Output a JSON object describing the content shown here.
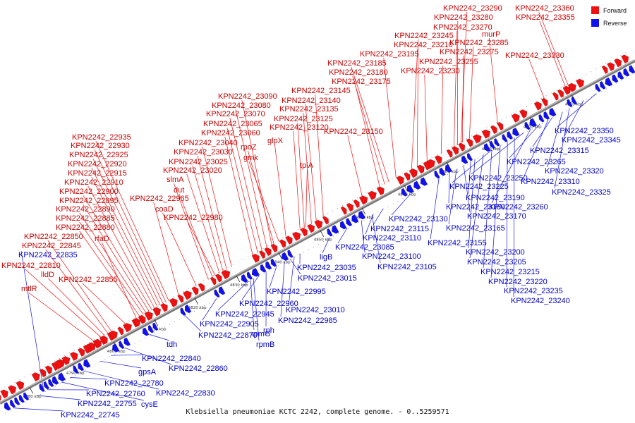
{
  "caption": "Klebsiella pneumoniae KCTC 2242, complete genome. - 0..5259571",
  "legend": [
    {
      "label": "Forward",
      "color": "#ee1111"
    },
    {
      "label": "Reverse",
      "color": "#1111ee"
    }
  ],
  "colors": {
    "forward": "#ee1111",
    "reverse": "#1111ee",
    "backbone": "#777777"
  },
  "ticks": [
    "4780 kbp",
    "4790 kbp",
    "4800 kbp",
    "4810 kbp",
    "4820 kbp",
    "4830 kbp",
    "4840 kbp",
    "4850 kbp",
    "4860 kbp",
    "4870 kbp",
    "4880 kbp",
    "4890 kbp",
    "4900 kbp",
    "4910 kbp"
  ],
  "forward_labels": [
    "mtlR",
    "lldD",
    "KPN2242_22810",
    "KPN2242_22845",
    "KPN2242_22850",
    "KPN2242_22855",
    "rfaD",
    "KPN2242_22880",
    "KPN2242_22885",
    "KPN2242_22890",
    "KPN2242_22895",
    "KPN2242_22900",
    "KPN2242_22910",
    "KPN2242_22915",
    "KPN2242_22920",
    "KPN2242_22925",
    "KPN2242_22930",
    "KPN2242_22935",
    "KPN2242_22965",
    "coaD",
    "KPN2242_22980",
    "slmA",
    "dut",
    "KPN2242_23020",
    "KPN2242_23025",
    "KPN2242_23030",
    "KPN2242_23040",
    "KPN2242_23060",
    "KPN2242_23065",
    "KPN2242_23070",
    "KPN2242_23080",
    "KPN2242_23090",
    "rpoZ",
    "gmk",
    "glpX",
    "tpiA",
    "KPN2242_23120",
    "KPN2242_23125",
    "KPN2242_23135",
    "KPN2242_23140",
    "KPN2242_23145",
    "KPN2242_23150",
    "KPN2242_23175",
    "KPN2242_23180",
    "KPN2242_23185",
    "KPN2242_23195",
    "KPN2242_23210",
    "KPN2242_23230",
    "KPN2242_23245",
    "KPN2242_23255",
    "KPN2242_23270",
    "KPN2242_23275",
    "KPN2242_23280",
    "KPN2242_23285",
    "KPN2242_23290",
    "murP",
    "KPN2242_23330",
    "KPN2242_23355",
    "KPN2242_23360"
  ],
  "reverse_labels": [
    "KPN2242_22745",
    "KPN2242_22755",
    "cysE",
    "KPN2242_22760",
    "KPN2242_22780",
    "KPN2242_22830",
    "gpsA",
    "KPN2242_22840",
    "KPN2242_22860",
    "tdh",
    "KPN2242_22835",
    "KPN2242_22870",
    "KPN2242_22905",
    "KPN2242_22945",
    "KPN2242_22960",
    "rpmG",
    "rpmB",
    "rph",
    "KPN2242_22985",
    "KPN2242_23010",
    "KPN2242_22995",
    "KPN2242_23015",
    "KPN2242_23035",
    "ligB",
    "KPN2242_23085",
    "KPN2242_23100",
    "KPN2242_23105",
    "KPN2242_23110",
    "KPN2242_23115",
    "KPN2242_23130",
    "KPN2242_23155",
    "KPN2242_23160",
    "KPN2242_23165",
    "KPN2242_23170",
    "KPN2242_23190",
    "KPN2242_23200",
    "KPN2242_23205",
    "KPN2242_23215",
    "KPN2242_23220",
    "KPN2242_23225",
    "KPN2242_23235",
    "KPN2242_23240",
    "KPN2242_23250",
    "KPN2242_23260",
    "KPN2242_23265",
    "KPN2242_23310",
    "KPN2242_23315",
    "KPN2242_23320",
    "KPN2242_23325",
    "KPN2242_23345",
    "KPN2242_23350"
  ]
}
